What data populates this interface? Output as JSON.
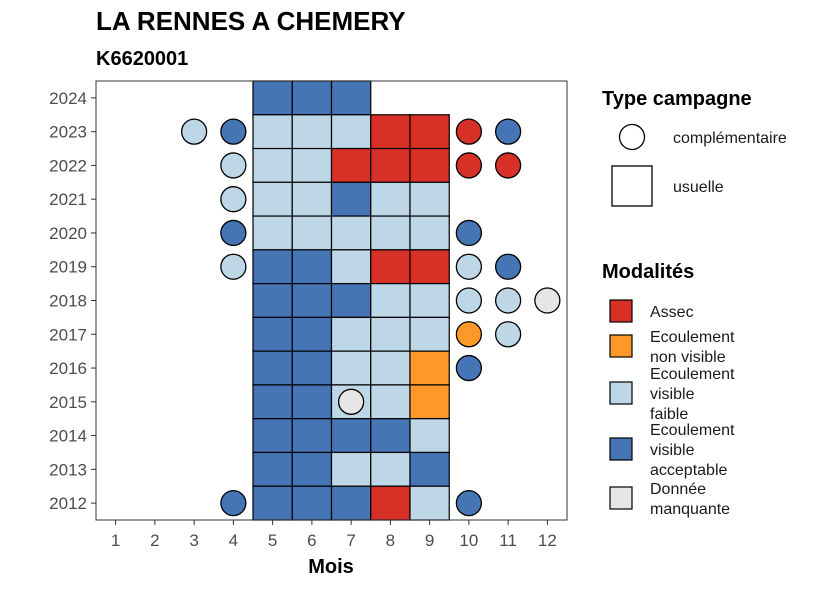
{
  "chart_data": {
    "type": "heatmap",
    "title": "LA RENNES A CHEMERY",
    "subtitle": "K6620001",
    "xlabel": "Mois",
    "ylabel": "",
    "x_ticks": [
      1,
      2,
      3,
      4,
      5,
      6,
      7,
      8,
      9,
      10,
      11,
      12
    ],
    "y_ticks": [
      2012,
      2013,
      2014,
      2015,
      2016,
      2017,
      2018,
      2019,
      2020,
      2021,
      2022,
      2023,
      2024
    ],
    "xlim": [
      0.5,
      12.5
    ],
    "ylim": [
      2011.5,
      2024.5
    ],
    "grid": false,
    "colors": {
      "Assec": "#d73027",
      "Ecoulement non visible": "#fe9929",
      "Ecoulement visible faible": "#bdd7e7",
      "Ecoulement visible acceptable": "#4575b4",
      "Donnée manquante": "#e6e6e6"
    },
    "legend_shape": {
      "title": "Type campagne",
      "entries": [
        {
          "key": "complementaire",
          "label": "complémentaire",
          "shape": "circle"
        },
        {
          "key": "usuelle",
          "label": "usuelle",
          "shape": "square"
        }
      ]
    },
    "legend_fill": {
      "title": "Modalités",
      "placement": "right",
      "entries": [
        {
          "key": "Assec",
          "lines": [
            "Assec"
          ]
        },
        {
          "key": "Ecoulement non visible",
          "lines": [
            "Ecoulement",
            "non visible"
          ]
        },
        {
          "key": "Ecoulement visible faible",
          "lines": [
            "Ecoulement",
            "visible",
            "faible"
          ]
        },
        {
          "key": "Ecoulement visible acceptable",
          "lines": [
            "Ecoulement",
            "visible",
            "acceptable"
          ]
        },
        {
          "key": "Donnée manquante",
          "lines": [
            "Donnée",
            "manquante"
          ]
        }
      ]
    },
    "usuelle": [
      {
        "year": 2024,
        "month": 5,
        "v": "Ecoulement visible acceptable"
      },
      {
        "year": 2024,
        "month": 6,
        "v": "Ecoulement visible acceptable"
      },
      {
        "year": 2024,
        "month": 7,
        "v": "Ecoulement visible acceptable"
      },
      {
        "year": 2023,
        "month": 5,
        "v": "Ecoulement visible faible"
      },
      {
        "year": 2023,
        "month": 6,
        "v": "Ecoulement visible faible"
      },
      {
        "year": 2023,
        "month": 7,
        "v": "Ecoulement visible faible"
      },
      {
        "year": 2023,
        "month": 8,
        "v": "Assec"
      },
      {
        "year": 2023,
        "month": 9,
        "v": "Assec"
      },
      {
        "year": 2022,
        "month": 5,
        "v": "Ecoulement visible faible"
      },
      {
        "year": 2022,
        "month": 6,
        "v": "Ecoulement visible faible"
      },
      {
        "year": 2022,
        "month": 7,
        "v": "Assec"
      },
      {
        "year": 2022,
        "month": 8,
        "v": "Assec"
      },
      {
        "year": 2022,
        "month": 9,
        "v": "Assec"
      },
      {
        "year": 2021,
        "month": 5,
        "v": "Ecoulement visible faible"
      },
      {
        "year": 2021,
        "month": 6,
        "v": "Ecoulement visible faible"
      },
      {
        "year": 2021,
        "month": 7,
        "v": "Ecoulement visible acceptable"
      },
      {
        "year": 2021,
        "month": 8,
        "v": "Ecoulement visible faible"
      },
      {
        "year": 2021,
        "month": 9,
        "v": "Ecoulement visible faible"
      },
      {
        "year": 2020,
        "month": 5,
        "v": "Ecoulement visible faible"
      },
      {
        "year": 2020,
        "month": 6,
        "v": "Ecoulement visible faible"
      },
      {
        "year": 2020,
        "month": 7,
        "v": "Ecoulement visible faible"
      },
      {
        "year": 2020,
        "month": 8,
        "v": "Ecoulement visible faible"
      },
      {
        "year": 2020,
        "month": 9,
        "v": "Ecoulement visible faible"
      },
      {
        "year": 2019,
        "month": 5,
        "v": "Ecoulement visible acceptable"
      },
      {
        "year": 2019,
        "month": 6,
        "v": "Ecoulement visible acceptable"
      },
      {
        "year": 2019,
        "month": 7,
        "v": "Ecoulement visible faible"
      },
      {
        "year": 2019,
        "month": 8,
        "v": "Assec"
      },
      {
        "year": 2019,
        "month": 9,
        "v": "Assec"
      },
      {
        "year": 2018,
        "month": 5,
        "v": "Ecoulement visible acceptable"
      },
      {
        "year": 2018,
        "month": 6,
        "v": "Ecoulement visible acceptable"
      },
      {
        "year": 2018,
        "month": 7,
        "v": "Ecoulement visible acceptable"
      },
      {
        "year": 2018,
        "month": 8,
        "v": "Ecoulement visible faible"
      },
      {
        "year": 2018,
        "month": 9,
        "v": "Ecoulement visible faible"
      },
      {
        "year": 2017,
        "month": 5,
        "v": "Ecoulement visible acceptable"
      },
      {
        "year": 2017,
        "month": 6,
        "v": "Ecoulement visible acceptable"
      },
      {
        "year": 2017,
        "month": 7,
        "v": "Ecoulement visible faible"
      },
      {
        "year": 2017,
        "month": 8,
        "v": "Ecoulement visible faible"
      },
      {
        "year": 2017,
        "month": 9,
        "v": "Ecoulement visible faible"
      },
      {
        "year": 2016,
        "month": 5,
        "v": "Ecoulement visible acceptable"
      },
      {
        "year": 2016,
        "month": 6,
        "v": "Ecoulement visible acceptable"
      },
      {
        "year": 2016,
        "month": 7,
        "v": "Ecoulement visible faible"
      },
      {
        "year": 2016,
        "month": 8,
        "v": "Ecoulement visible faible"
      },
      {
        "year": 2016,
        "month": 9,
        "v": "Ecoulement non visible"
      },
      {
        "year": 2015,
        "month": 5,
        "v": "Ecoulement visible acceptable"
      },
      {
        "year": 2015,
        "month": 6,
        "v": "Ecoulement visible acceptable"
      },
      {
        "year": 2015,
        "month": 7,
        "v": "Ecoulement visible faible"
      },
      {
        "year": 2015,
        "month": 8,
        "v": "Ecoulement visible faible"
      },
      {
        "year": 2015,
        "month": 9,
        "v": "Ecoulement non visible"
      },
      {
        "year": 2014,
        "month": 5,
        "v": "Ecoulement visible acceptable"
      },
      {
        "year": 2014,
        "month": 6,
        "v": "Ecoulement visible acceptable"
      },
      {
        "year": 2014,
        "month": 7,
        "v": "Ecoulement visible acceptable"
      },
      {
        "year": 2014,
        "month": 8,
        "v": "Ecoulement visible acceptable"
      },
      {
        "year": 2014,
        "month": 9,
        "v": "Ecoulement visible faible"
      },
      {
        "year": 2013,
        "month": 5,
        "v": "Ecoulement visible acceptable"
      },
      {
        "year": 2013,
        "month": 6,
        "v": "Ecoulement visible acceptable"
      },
      {
        "year": 2013,
        "month": 7,
        "v": "Ecoulement visible faible"
      },
      {
        "year": 2013,
        "month": 8,
        "v": "Ecoulement visible faible"
      },
      {
        "year": 2013,
        "month": 9,
        "v": "Ecoulement visible acceptable"
      },
      {
        "year": 2012,
        "month": 5,
        "v": "Ecoulement visible acceptable"
      },
      {
        "year": 2012,
        "month": 6,
        "v": "Ecoulement visible acceptable"
      },
      {
        "year": 2012,
        "month": 7,
        "v": "Ecoulement visible acceptable"
      },
      {
        "year": 2012,
        "month": 8,
        "v": "Assec"
      },
      {
        "year": 2012,
        "month": 9,
        "v": "Ecoulement visible faible"
      }
    ],
    "complementaire": [
      {
        "year": 2023,
        "month": 3,
        "v": "Ecoulement visible faible"
      },
      {
        "year": 2023,
        "month": 4,
        "v": "Ecoulement visible acceptable"
      },
      {
        "year": 2023,
        "month": 10,
        "v": "Assec"
      },
      {
        "year": 2023,
        "month": 11,
        "v": "Ecoulement visible acceptable"
      },
      {
        "year": 2022,
        "month": 4,
        "v": "Ecoulement visible faible"
      },
      {
        "year": 2022,
        "month": 10,
        "v": "Assec"
      },
      {
        "year": 2022,
        "month": 11,
        "v": "Assec"
      },
      {
        "year": 2021,
        "month": 4,
        "v": "Ecoulement visible faible"
      },
      {
        "year": 2020,
        "month": 4,
        "v": "Ecoulement visible acceptable"
      },
      {
        "year": 2020,
        "month": 10,
        "v": "Ecoulement visible acceptable"
      },
      {
        "year": 2019,
        "month": 4,
        "v": "Ecoulement visible faible"
      },
      {
        "year": 2019,
        "month": 10,
        "v": "Ecoulement visible faible"
      },
      {
        "year": 2019,
        "month": 11,
        "v": "Ecoulement visible acceptable"
      },
      {
        "year": 2018,
        "month": 10,
        "v": "Ecoulement visible faible"
      },
      {
        "year": 2018,
        "month": 11,
        "v": "Ecoulement visible faible"
      },
      {
        "year": 2018,
        "month": 12,
        "v": "Donnée manquante"
      },
      {
        "year": 2017,
        "month": 10,
        "v": "Ecoulement non visible"
      },
      {
        "year": 2017,
        "month": 11,
        "v": "Ecoulement visible faible"
      },
      {
        "year": 2016,
        "month": 10,
        "v": "Ecoulement visible acceptable"
      },
      {
        "year": 2015,
        "month": 7,
        "v": "Donnée manquante"
      },
      {
        "year": 2012,
        "month": 4,
        "v": "Ecoulement visible acceptable"
      },
      {
        "year": 2012,
        "month": 10,
        "v": "Ecoulement visible acceptable"
      }
    ]
  }
}
